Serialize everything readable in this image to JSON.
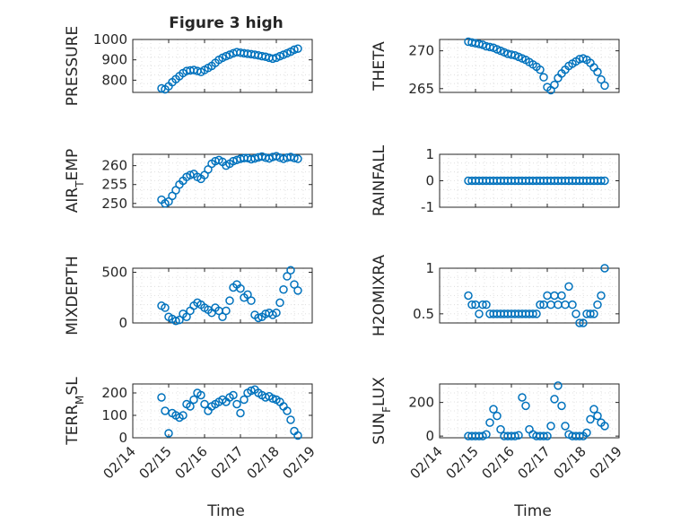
{
  "chart_data": {
    "type": "scatter",
    "title": "Figure 3 high",
    "marker_color": "#0072BD",
    "xlabel": "Time",
    "x_ticks": [
      "02/14",
      "02/15",
      "02/16",
      "02/17",
      "02/18",
      "02/19"
    ],
    "x_range_days": [
      14,
      19
    ],
    "panels": [
      {
        "name": "pressure",
        "ylabel": "PRESSURE",
        "ylim": [
          740,
          1000
        ],
        "yticks": [
          800,
          900,
          1000
        ],
        "x": [
          14.8,
          14.9,
          15.0,
          15.1,
          15.2,
          15.3,
          15.4,
          15.5,
          15.6,
          15.7,
          15.8,
          15.9,
          16.0,
          16.1,
          16.2,
          16.3,
          16.4,
          16.5,
          16.6,
          16.7,
          16.8,
          16.9,
          17.0,
          17.1,
          17.2,
          17.3,
          17.4,
          17.5,
          17.6,
          17.7,
          17.8,
          17.9,
          18.0,
          18.1,
          18.2,
          18.3,
          18.4,
          18.5,
          18.6
        ],
        "values": [
          760,
          755,
          770,
          790,
          805,
          820,
          835,
          845,
          848,
          850,
          845,
          840,
          850,
          860,
          870,
          885,
          900,
          910,
          918,
          925,
          932,
          938,
          935,
          932,
          930,
          928,
          925,
          922,
          918,
          915,
          910,
          906,
          910,
          918,
          925,
          932,
          940,
          950,
          955
        ]
      },
      {
        "name": "theta",
        "ylabel": "THETA",
        "ylim": [
          264.5,
          271.5
        ],
        "yticks": [
          265,
          270
        ],
        "x": [
          14.8,
          14.9,
          15.0,
          15.1,
          15.2,
          15.3,
          15.4,
          15.5,
          15.6,
          15.7,
          15.8,
          15.9,
          16.0,
          16.1,
          16.2,
          16.3,
          16.4,
          16.5,
          16.6,
          16.7,
          16.8,
          16.9,
          17.0,
          17.1,
          17.2,
          17.3,
          17.4,
          17.5,
          17.6,
          17.7,
          17.8,
          17.9,
          18.0,
          18.1,
          18.2,
          18.3,
          18.4,
          18.5,
          18.6
        ],
        "values": [
          271.2,
          271.1,
          271.0,
          270.9,
          270.8,
          270.6,
          270.5,
          270.4,
          270.2,
          270.0,
          269.8,
          269.6,
          269.5,
          269.4,
          269.2,
          269.0,
          268.8,
          268.5,
          268.2,
          267.9,
          267.5,
          266.5,
          265.2,
          264.8,
          265.5,
          266.4,
          267.0,
          267.5,
          268.0,
          268.3,
          268.6,
          268.9,
          269.0,
          268.8,
          268.4,
          267.8,
          267.2,
          266.2,
          265.4
        ]
      },
      {
        "name": "air_temp",
        "ylabel": "AIR_TEMP",
        "ylim": [
          249,
          263
        ],
        "yticks": [
          250,
          255,
          260
        ],
        "x": [
          14.8,
          14.9,
          15.0,
          15.1,
          15.2,
          15.3,
          15.4,
          15.5,
          15.6,
          15.7,
          15.8,
          15.9,
          16.0,
          16.1,
          16.2,
          16.3,
          16.4,
          16.5,
          16.6,
          16.7,
          16.8,
          16.9,
          17.0,
          17.1,
          17.2,
          17.3,
          17.4,
          17.5,
          17.6,
          17.7,
          17.8,
          17.9,
          18.0,
          18.1,
          18.2,
          18.3,
          18.4,
          18.5,
          18.6
        ],
        "values": [
          251,
          250,
          250.5,
          252,
          253.5,
          255,
          256,
          257,
          257.5,
          257.8,
          257,
          256.5,
          257.5,
          259,
          260.5,
          261.2,
          261.5,
          261,
          260,
          260.5,
          261.2,
          261.5,
          261.8,
          262,
          262,
          261.7,
          261.9,
          262.2,
          262.4,
          262.1,
          261.9,
          262.3,
          262.5,
          262.1,
          261.8,
          262.1,
          262.3,
          262.0,
          261.8
        ]
      },
      {
        "name": "rainfall",
        "ylabel": "RAINFALL",
        "ylim": [
          -1,
          1
        ],
        "yticks": [
          -1,
          0,
          1
        ],
        "x": [
          14.8,
          14.9,
          15.0,
          15.1,
          15.2,
          15.3,
          15.4,
          15.5,
          15.6,
          15.7,
          15.8,
          15.9,
          16.0,
          16.1,
          16.2,
          16.3,
          16.4,
          16.5,
          16.6,
          16.7,
          16.8,
          16.9,
          17.0,
          17.1,
          17.2,
          17.3,
          17.4,
          17.5,
          17.6,
          17.7,
          17.8,
          17.9,
          18.0,
          18.1,
          18.2,
          18.3,
          18.4,
          18.5,
          18.6
        ],
        "values": [
          0,
          0,
          0,
          0,
          0,
          0,
          0,
          0,
          0,
          0,
          0,
          0,
          0,
          0,
          0,
          0,
          0,
          0,
          0,
          0,
          0,
          0,
          0,
          0,
          0,
          0,
          0,
          0,
          0,
          0,
          0,
          0,
          0,
          0,
          0,
          0,
          0,
          0,
          0
        ]
      },
      {
        "name": "mixdepth",
        "ylabel": "MIXDEPTH",
        "ylim": [
          0,
          540
        ],
        "yticks": [
          0,
          500
        ],
        "x": [
          14.8,
          14.9,
          15.0,
          15.1,
          15.2,
          15.3,
          15.4,
          15.5,
          15.6,
          15.7,
          15.8,
          15.9,
          16.0,
          16.1,
          16.2,
          16.3,
          16.4,
          16.5,
          16.6,
          16.7,
          16.8,
          16.9,
          17.0,
          17.1,
          17.2,
          17.3,
          17.4,
          17.5,
          17.6,
          17.7,
          17.8,
          17.9,
          18.0,
          18.1,
          18.2,
          18.3,
          18.4,
          18.5,
          18.6
        ],
        "values": [
          170,
          150,
          60,
          40,
          20,
          30,
          90,
          60,
          120,
          170,
          200,
          180,
          150,
          130,
          100,
          150,
          120,
          60,
          120,
          220,
          350,
          380,
          340,
          250,
          280,
          220,
          80,
          50,
          60,
          90,
          100,
          80,
          100,
          200,
          330,
          460,
          520,
          380,
          320
        ]
      },
      {
        "name": "h2omixra",
        "ylabel": "H2OMIXRA",
        "ylim": [
          0.4,
          1.0
        ],
        "yticks": [
          0.5,
          1
        ],
        "x": [
          14.8,
          14.9,
          15.0,
          15.1,
          15.2,
          15.3,
          15.4,
          15.5,
          15.6,
          15.7,
          15.8,
          15.9,
          16.0,
          16.1,
          16.2,
          16.3,
          16.4,
          16.5,
          16.6,
          16.7,
          16.8,
          16.9,
          17.0,
          17.1,
          17.2,
          17.3,
          17.4,
          17.5,
          17.6,
          17.7,
          17.8,
          17.9,
          18.0,
          18.1,
          18.2,
          18.3,
          18.4,
          18.5,
          18.6
        ],
        "values": [
          0.7,
          0.6,
          0.6,
          0.5,
          0.6,
          0.6,
          0.5,
          0.5,
          0.5,
          0.5,
          0.5,
          0.5,
          0.5,
          0.5,
          0.5,
          0.5,
          0.5,
          0.5,
          0.5,
          0.5,
          0.6,
          0.6,
          0.7,
          0.6,
          0.7,
          0.6,
          0.7,
          0.6,
          0.8,
          0.6,
          0.5,
          0.4,
          0.4,
          0.5,
          0.5,
          0.5,
          0.6,
          0.7,
          1.0
        ]
      },
      {
        "name": "terr_msl",
        "ylabel": "TERR_MSL",
        "ylim": [
          0,
          240
        ],
        "yticks": [
          0,
          100,
          200
        ],
        "x": [
          14.8,
          14.9,
          15.0,
          15.1,
          15.2,
          15.3,
          15.4,
          15.5,
          15.6,
          15.7,
          15.8,
          15.9,
          16.0,
          16.1,
          16.2,
          16.3,
          16.4,
          16.5,
          16.6,
          16.7,
          16.8,
          16.9,
          17.0,
          17.1,
          17.2,
          17.3,
          17.4,
          17.5,
          17.6,
          17.7,
          17.8,
          17.9,
          18.0,
          18.1,
          18.2,
          18.3,
          18.4,
          18.5,
          18.6
        ],
        "values": [
          180,
          120,
          20,
          110,
          100,
          90,
          100,
          150,
          140,
          170,
          200,
          190,
          150,
          120,
          140,
          150,
          160,
          170,
          160,
          180,
          190,
          150,
          110,
          170,
          200,
          210,
          215,
          200,
          190,
          180,
          185,
          175,
          170,
          160,
          140,
          120,
          80,
          30,
          10
        ]
      },
      {
        "name": "sun_flux",
        "ylabel": "SUN_FLUX",
        "ylim": [
          -10,
          310
        ],
        "yticks": [
          0,
          200
        ],
        "x": [
          14.8,
          14.9,
          15.0,
          15.1,
          15.2,
          15.3,
          15.4,
          15.5,
          15.6,
          15.7,
          15.8,
          15.9,
          16.0,
          16.1,
          16.2,
          16.3,
          16.4,
          16.5,
          16.6,
          16.7,
          16.8,
          16.9,
          17.0,
          17.1,
          17.2,
          17.3,
          17.4,
          17.5,
          17.6,
          17.7,
          17.8,
          17.9,
          18.0,
          18.1,
          18.2,
          18.3,
          18.4,
          18.5,
          18.6
        ],
        "values": [
          0,
          0,
          0,
          0,
          0,
          10,
          80,
          160,
          120,
          40,
          0,
          0,
          0,
          0,
          5,
          230,
          180,
          40,
          10,
          0,
          0,
          0,
          0,
          60,
          220,
          300,
          180,
          60,
          10,
          0,
          0,
          0,
          0,
          20,
          100,
          160,
          120,
          80,
          60
        ]
      }
    ]
  }
}
